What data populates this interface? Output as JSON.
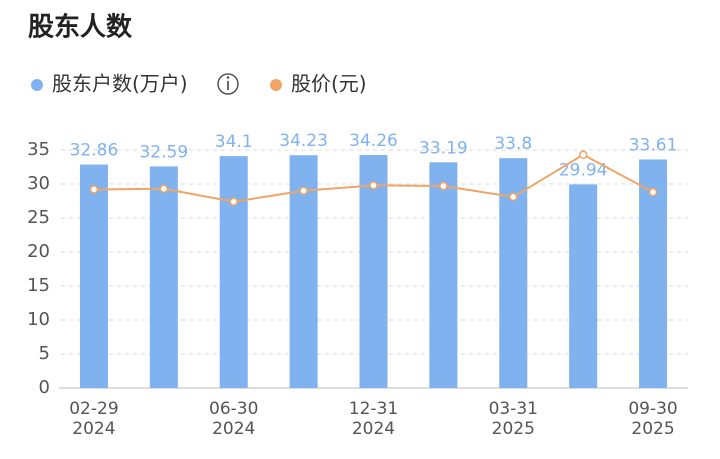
{
  "chart_data": {
    "type": "bar",
    "title": "股东人数",
    "categories": [
      "02-29\n2024",
      null,
      "06-30\n2024",
      null,
      "12-31\n2024",
      null,
      "03-31\n2025",
      null,
      "09-30\n2025"
    ],
    "series": [
      {
        "name": "股东户数(万户)",
        "type": "bar",
        "color": "#7fb2ef",
        "values": [
          32.86,
          32.59,
          34.1,
          34.23,
          34.26,
          33.19,
          33.8,
          29.94,
          33.61
        ]
      },
      {
        "name": "股价(元)",
        "type": "line",
        "color": "#f0a566",
        "values": [
          29.2,
          29.3,
          27.4,
          29.0,
          29.8,
          29.7,
          28.1,
          34.3,
          28.8
        ]
      }
    ],
    "ylim": [
      0,
      35
    ],
    "yticks": [
      0,
      5,
      10,
      15,
      20,
      25,
      30,
      35
    ],
    "grid": true
  }
}
